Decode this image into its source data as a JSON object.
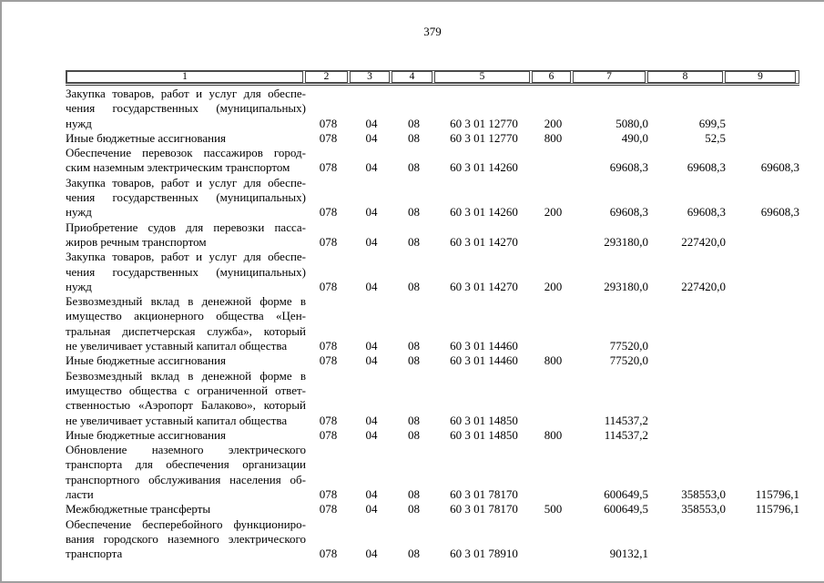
{
  "page": {
    "number": "379"
  },
  "colors": {
    "background": "#ffffff",
    "text": "#000000",
    "page_edge": "#9e9e9e",
    "table_border": "#4a4a4a"
  },
  "table": {
    "header": [
      "1",
      "2",
      "3",
      "4",
      "5",
      "6",
      "7",
      "8",
      "9"
    ],
    "rows": [
      {
        "name_lines": [
          "Закупка товаров, работ и услуг для обеспе-",
          "чения государственных (муниципальных)",
          "нужд"
        ],
        "c2": "078",
        "c3": "04",
        "c4": "08",
        "c5": "60 3 01 12770",
        "c6": "200",
        "c7": "5080,0",
        "c8": "699,5",
        "c9": ""
      },
      {
        "name_lines": [
          "Иные бюджетные ассигнования"
        ],
        "c2": "078",
        "c3": "04",
        "c4": "08",
        "c5": "60 3 01 12770",
        "c6": "800",
        "c7": "490,0",
        "c8": "52,5",
        "c9": ""
      },
      {
        "name_lines": [
          "Обеспечение перевозок пассажиров город-",
          "ским наземным электрическим транспортом"
        ],
        "c2": "078",
        "c3": "04",
        "c4": "08",
        "c5": "60 3 01 14260",
        "c6": "",
        "c7": "69608,3",
        "c8": "69608,3",
        "c9": "69608,3"
      },
      {
        "name_lines": [
          "Закупка товаров, работ и услуг для обеспе-",
          "чения государственных (муниципальных)",
          "нужд"
        ],
        "c2": "078",
        "c3": "04",
        "c4": "08",
        "c5": "60 3 01 14260",
        "c6": "200",
        "c7": "69608,3",
        "c8": "69608,3",
        "c9": "69608,3"
      },
      {
        "name_lines": [
          "Приобретение судов для перевозки пасса-",
          "жиров речным транспортом"
        ],
        "c2": "078",
        "c3": "04",
        "c4": "08",
        "c5": "60 3 01 14270",
        "c6": "",
        "c7": "293180,0",
        "c8": "227420,0",
        "c9": ""
      },
      {
        "name_lines": [
          "Закупка товаров, работ и услуг для обеспе-",
          "чения государственных (муниципальных)",
          "нужд"
        ],
        "c2": "078",
        "c3": "04",
        "c4": "08",
        "c5": "60 3 01 14270",
        "c6": "200",
        "c7": "293180,0",
        "c8": "227420,0",
        "c9": ""
      },
      {
        "name_lines": [
          "Безвозмездный вклад в денежной форме в",
          "имущество акционерного общества «Цен-",
          "тральная диспетчерская служба», который",
          "не увеличивает уставный капитал общества"
        ],
        "c2": "078",
        "c3": "04",
        "c4": "08",
        "c5": "60 3 01 14460",
        "c6": "",
        "c7": "77520,0",
        "c8": "",
        "c9": ""
      },
      {
        "name_lines": [
          "Иные бюджетные ассигнования"
        ],
        "c2": "078",
        "c3": "04",
        "c4": "08",
        "c5": "60 3 01 14460",
        "c6": "800",
        "c7": "77520,0",
        "c8": "",
        "c9": ""
      },
      {
        "name_lines": [
          "Безвозмездный вклад в денежной форме в",
          "имущество общества с ограниченной ответ-",
          "ственностью «Аэропорт Балаково», который",
          "не увеличивает уставный капитал общества"
        ],
        "c2": "078",
        "c3": "04",
        "c4": "08",
        "c5": "60 3 01 14850",
        "c6": "",
        "c7": "114537,2",
        "c8": "",
        "c9": ""
      },
      {
        "name_lines": [
          "Иные бюджетные ассигнования"
        ],
        "c2": "078",
        "c3": "04",
        "c4": "08",
        "c5": "60 3 01 14850",
        "c6": "800",
        "c7": "114537,2",
        "c8": "",
        "c9": ""
      },
      {
        "name_lines": [
          "Обновление наземного электрического",
          "транспорта для обеспечения организации",
          "транспортного обслуживания населения об-",
          "ласти"
        ],
        "c2": "078",
        "c3": "04",
        "c4": "08",
        "c5": "60 3 01 78170",
        "c6": "",
        "c7": "600649,5",
        "c8": "358553,0",
        "c9": "115796,1"
      },
      {
        "name_lines": [
          "Межбюджетные трансферты"
        ],
        "c2": "078",
        "c3": "04",
        "c4": "08",
        "c5": "60 3 01 78170",
        "c6": "500",
        "c7": "600649,5",
        "c8": "358553,0",
        "c9": "115796,1"
      },
      {
        "name_lines": [
          "Обеспечение бесперебойного функциониро-",
          "вания городского наземного электрического",
          "транспорта"
        ],
        "c2": "078",
        "c3": "04",
        "c4": "08",
        "c5": "60 3 01 78910",
        "c6": "",
        "c7": "90132,1",
        "c8": "",
        "c9": ""
      }
    ]
  }
}
